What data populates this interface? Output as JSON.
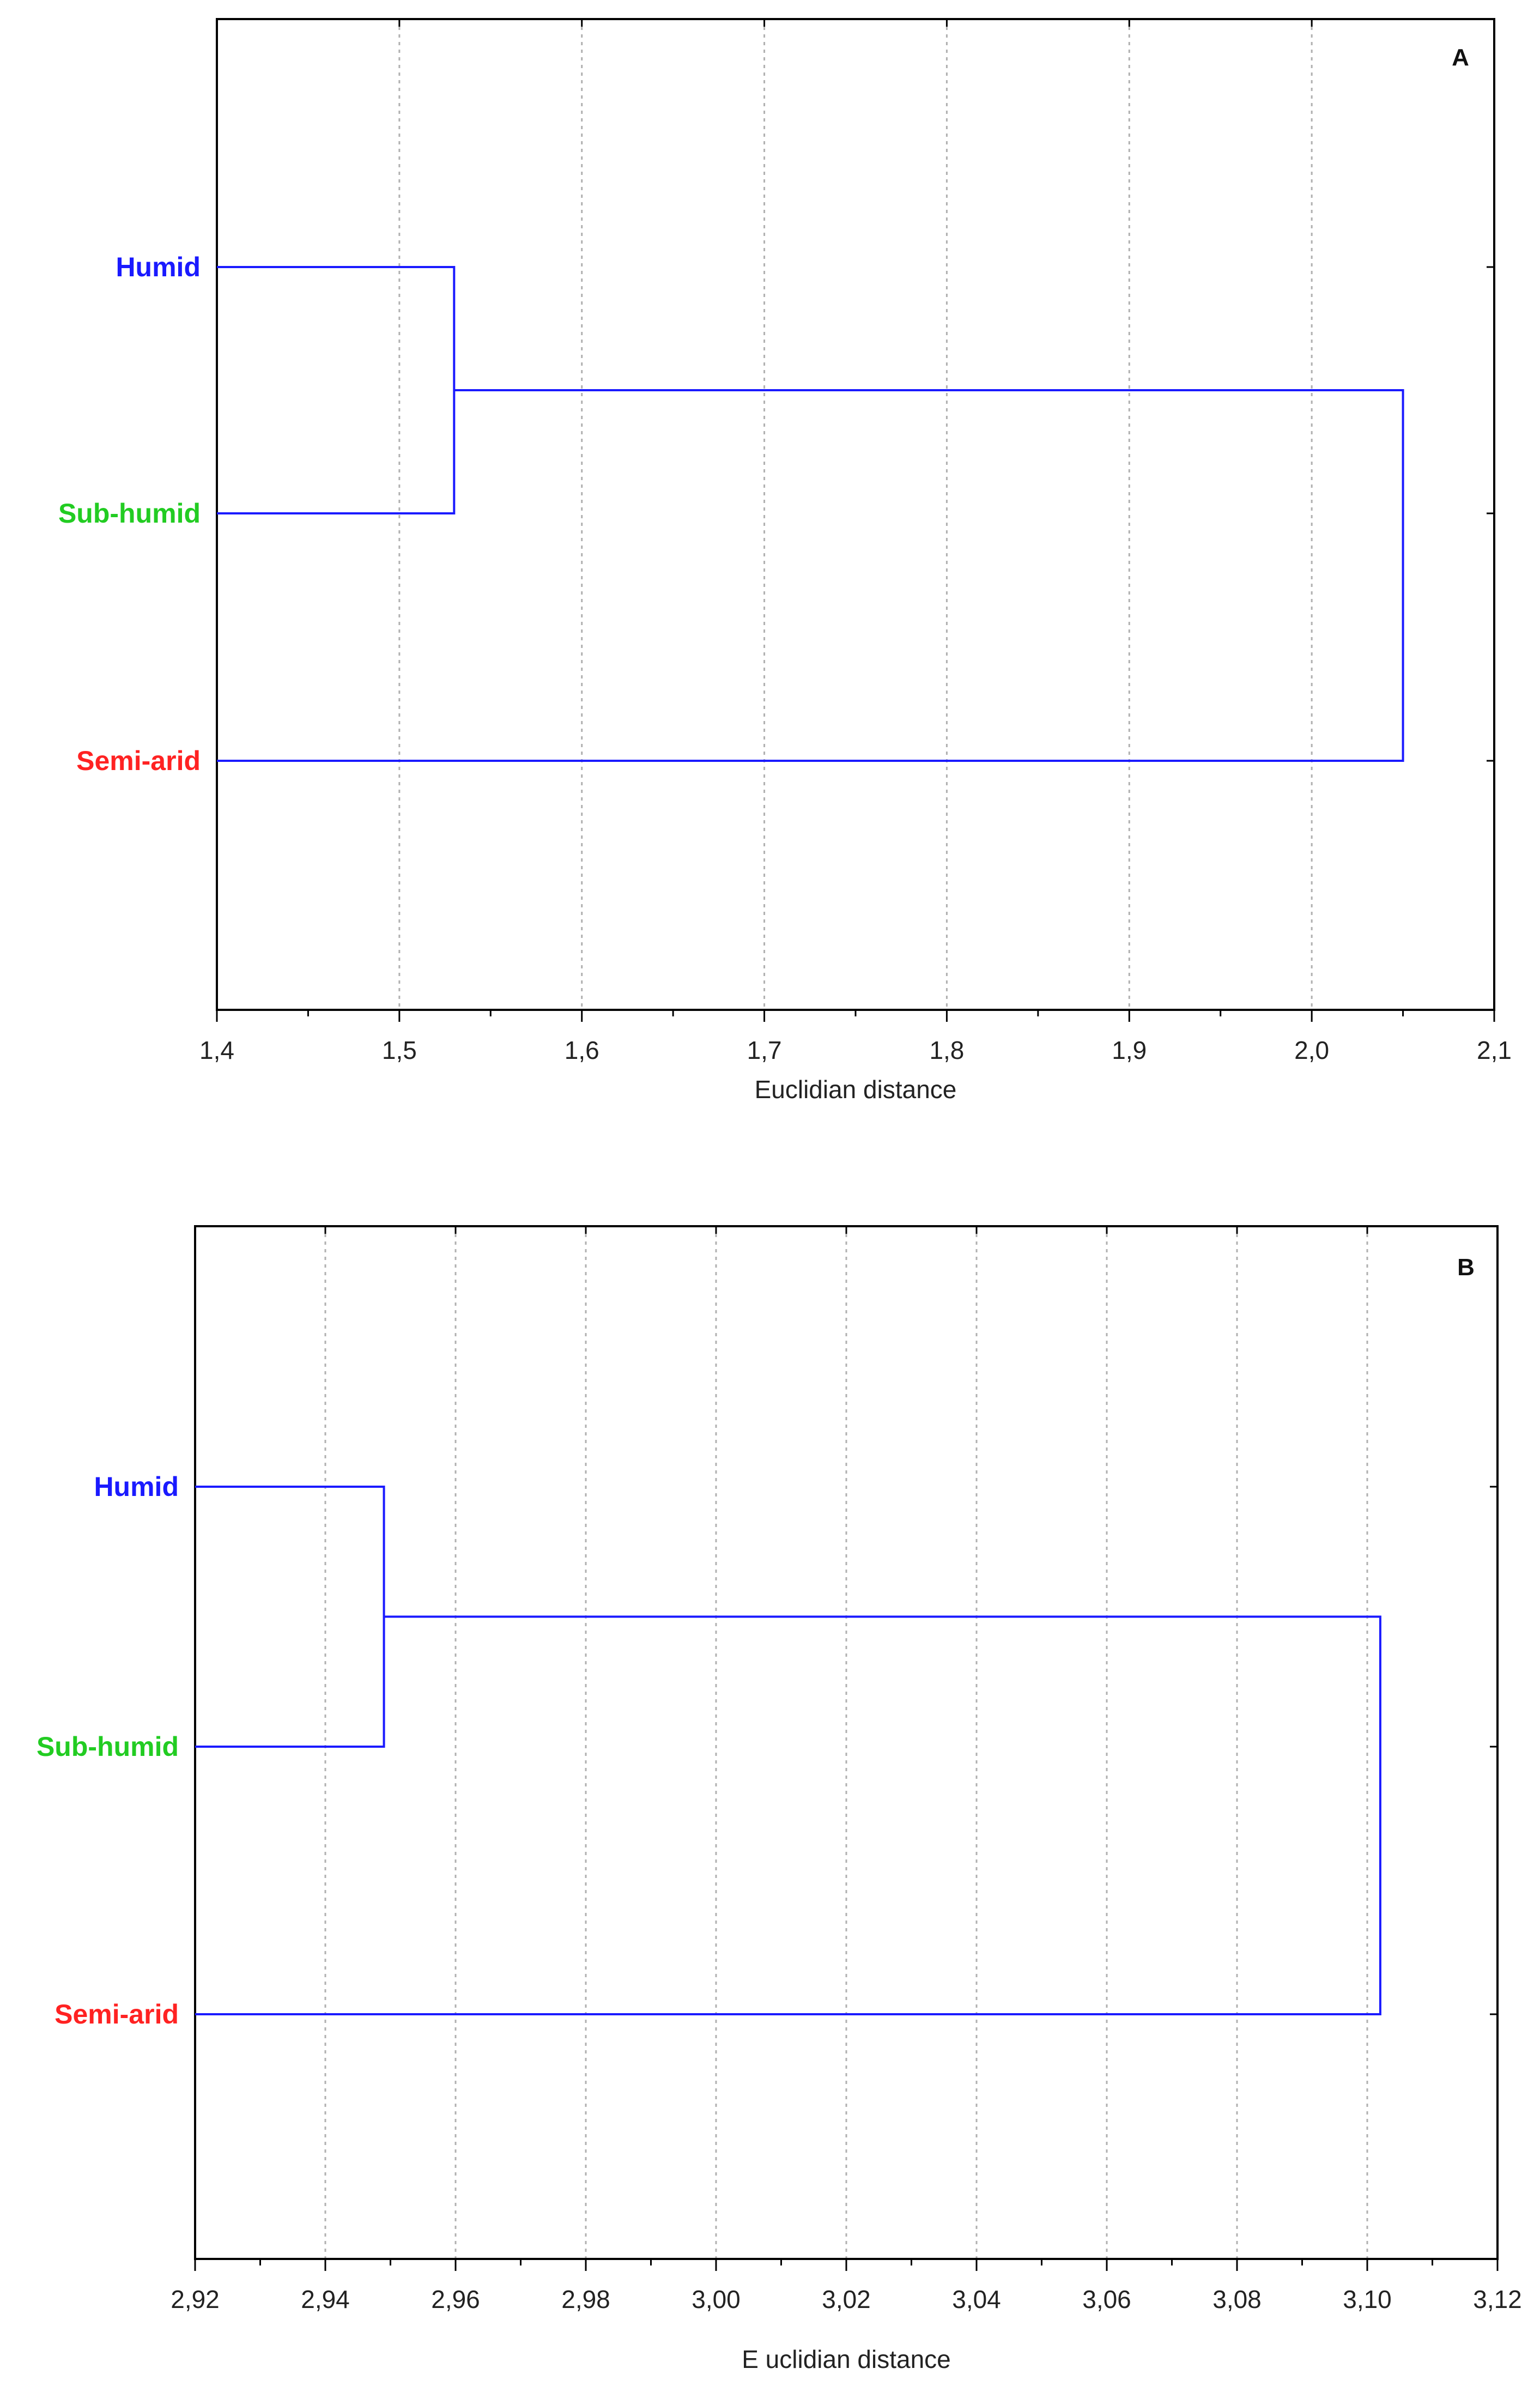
{
  "chart_data": [
    {
      "type": "dendrogram",
      "panel_label": "A",
      "xlabel": "Euclidian distance",
      "xlim": [
        1.4,
        2.1
      ],
      "grid": true,
      "ticks": [
        {
          "value": 1.4,
          "label": "1,4"
        },
        {
          "value": 1.5,
          "label": "1,5"
        },
        {
          "value": 1.6,
          "label": "1,6"
        },
        {
          "value": 1.7,
          "label": "1,7"
        },
        {
          "value": 1.8,
          "label": "1,8"
        },
        {
          "value": 1.9,
          "label": "1,9"
        },
        {
          "value": 2.0,
          "label": "2,0"
        },
        {
          "value": 2.1,
          "label": "2,1"
        }
      ],
      "leaves": [
        {
          "label": "Humid",
          "color": "#1a1aff"
        },
        {
          "label": "Sub-humid",
          "color": "#22cc22"
        },
        {
          "label": "Semi-arid",
          "color": "#ff2222"
        }
      ],
      "merges": [
        {
          "members": [
            "Humid",
            "Sub-humid"
          ],
          "distance": 1.53
        },
        {
          "members": [
            "Humid+Sub-humid",
            "Semi-arid"
          ],
          "distance": 2.05
        }
      ]
    },
    {
      "type": "dendrogram",
      "panel_label": "B",
      "xlabel": "E uclidian distance",
      "xlim": [
        2.92,
        3.12
      ],
      "grid": true,
      "ticks": [
        {
          "value": 2.92,
          "label": "2,92"
        },
        {
          "value": 2.94,
          "label": "2,94"
        },
        {
          "value": 2.96,
          "label": "2,96"
        },
        {
          "value": 2.98,
          "label": "2,98"
        },
        {
          "value": 3.0,
          "label": "3,00"
        },
        {
          "value": 3.02,
          "label": "3,02"
        },
        {
          "value": 3.04,
          "label": "3,04"
        },
        {
          "value": 3.06,
          "label": "3,06"
        },
        {
          "value": 3.08,
          "label": "3,08"
        },
        {
          "value": 3.1,
          "label": "3,10"
        },
        {
          "value": 3.12,
          "label": "3,12"
        }
      ],
      "leaves": [
        {
          "label": "Humid",
          "color": "#1a1aff"
        },
        {
          "label": "Sub-humid",
          "color": "#22cc22"
        },
        {
          "label": "Semi-arid",
          "color": "#ff2222"
        }
      ],
      "merges": [
        {
          "members": [
            "Humid",
            "Sub-humid"
          ],
          "distance": 2.949
        },
        {
          "members": [
            "Humid+Sub-humid",
            "Semi-arid"
          ],
          "distance": 3.102
        }
      ]
    }
  ]
}
